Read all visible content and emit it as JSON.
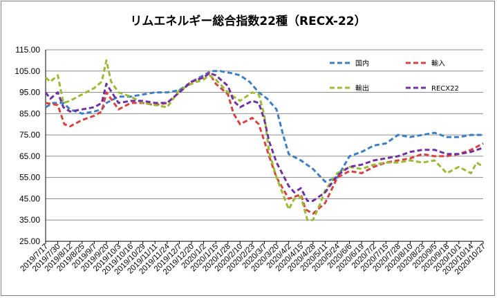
{
  "chart_data": {
    "type": "line",
    "title": "リムエネルギー総合指数22種（RECX-22）",
    "xlabel": "",
    "ylabel": "",
    "ylim": [
      25,
      115
    ],
    "yticks": [
      "115.00",
      "105.00",
      "95.00",
      "85.00",
      "75.00",
      "65.00",
      "55.00",
      "45.00",
      "35.00",
      "25.00"
    ],
    "grid": true,
    "legend_position": "top-right",
    "x_start": "2019-07-17",
    "x_end": "2020-10-27",
    "xticks": [
      "2019/7/17",
      "2019/7/30",
      "2019/8/12",
      "2019/8/25",
      "2019/9/7",
      "2019/9/20",
      "2019/10/3",
      "2019/10/16",
      "2019/10/29",
      "2019/11/11",
      "2019/11/24",
      "2019/12/7",
      "2019/12/20",
      "2020/1/2",
      "2020/1/15",
      "2020/1/28",
      "2020/2/10",
      "2020/2/23",
      "2020/3/7",
      "2020/3/20",
      "2020/4/2",
      "2020/4/15",
      "2020/4/28",
      "2020/5/11",
      "2020/5/24",
      "2020/6/6",
      "2020/6/19",
      "2020/7/2",
      "2020/7/15",
      "2020/7/28",
      "2020/8/10",
      "2020/8/23",
      "2020/9/5",
      "2020/9/18",
      "2020/10/1",
      "2020/10/14",
      "2020/10/27"
    ],
    "series": [
      {
        "name": "国内",
        "color": "#3c7fc4",
        "dash": "dashed",
        "points": [
          [
            "2019-07-17",
            88
          ],
          [
            "2019-07-25",
            90
          ],
          [
            "2019-08-05",
            90
          ],
          [
            "2019-08-12",
            87
          ],
          [
            "2019-08-25",
            85
          ],
          [
            "2019-09-07",
            86
          ],
          [
            "2019-09-15",
            87
          ],
          [
            "2019-09-20",
            90
          ],
          [
            "2019-10-03",
            93
          ],
          [
            "2019-10-16",
            93
          ],
          [
            "2019-10-29",
            94
          ],
          [
            "2019-11-11",
            95
          ],
          [
            "2019-11-24",
            95
          ],
          [
            "2019-12-07",
            96
          ],
          [
            "2019-12-20",
            100
          ],
          [
            "2020-01-02",
            103
          ],
          [
            "2020-01-10",
            105
          ],
          [
            "2020-01-20",
            105
          ],
          [
            "2020-02-01",
            104
          ],
          [
            "2020-02-10",
            103
          ],
          [
            "2020-02-20",
            100
          ],
          [
            "2020-03-01",
            95
          ],
          [
            "2020-03-10",
            92
          ],
          [
            "2020-03-20",
            87
          ],
          [
            "2020-03-27",
            75
          ],
          [
            "2020-04-02",
            66
          ],
          [
            "2020-04-15",
            63
          ],
          [
            "2020-04-28",
            59
          ],
          [
            "2020-05-11",
            53
          ],
          [
            "2020-05-24",
            55
          ],
          [
            "2020-06-06",
            65
          ],
          [
            "2020-06-19",
            67
          ],
          [
            "2020-07-02",
            70
          ],
          [
            "2020-07-15",
            71
          ],
          [
            "2020-07-28",
            75
          ],
          [
            "2020-08-10",
            74
          ],
          [
            "2020-08-23",
            75
          ],
          [
            "2020-09-05",
            76
          ],
          [
            "2020-09-18",
            74
          ],
          [
            "2020-10-01",
            74
          ],
          [
            "2020-10-14",
            75
          ],
          [
            "2020-10-27",
            75
          ]
        ]
      },
      {
        "name": "輸入",
        "color": "#d94040",
        "dash": "dashed",
        "points": [
          [
            "2019-07-17",
            90
          ],
          [
            "2019-07-30",
            89
          ],
          [
            "2019-08-06",
            80
          ],
          [
            "2019-08-12",
            79
          ],
          [
            "2019-08-25",
            82
          ],
          [
            "2019-09-07",
            84
          ],
          [
            "2019-09-15",
            86
          ],
          [
            "2019-09-20",
            95
          ],
          [
            "2019-10-03",
            87
          ],
          [
            "2019-10-16",
            90
          ],
          [
            "2019-10-29",
            90
          ],
          [
            "2019-11-11",
            89
          ],
          [
            "2019-11-24",
            90
          ],
          [
            "2019-12-07",
            95
          ],
          [
            "2019-12-20",
            100
          ],
          [
            "2020-01-02",
            102
          ],
          [
            "2020-01-08",
            104
          ],
          [
            "2020-01-15",
            99
          ],
          [
            "2020-01-28",
            94
          ],
          [
            "2020-02-03",
            85
          ],
          [
            "2020-02-10",
            80
          ],
          [
            "2020-02-23",
            83
          ],
          [
            "2020-03-01",
            80
          ],
          [
            "2020-03-07",
            72
          ],
          [
            "2020-03-12",
            65
          ],
          [
            "2020-03-20",
            55
          ],
          [
            "2020-04-02",
            45
          ],
          [
            "2020-04-15",
            47
          ],
          [
            "2020-04-20",
            40
          ],
          [
            "2020-04-28",
            38
          ],
          [
            "2020-05-11",
            43
          ],
          [
            "2020-05-24",
            55
          ],
          [
            "2020-06-06",
            58
          ],
          [
            "2020-06-19",
            57
          ],
          [
            "2020-07-02",
            60
          ],
          [
            "2020-07-15",
            62
          ],
          [
            "2020-07-28",
            63
          ],
          [
            "2020-08-10",
            64
          ],
          [
            "2020-08-23",
            66
          ],
          [
            "2020-09-05",
            65
          ],
          [
            "2020-09-18",
            65
          ],
          [
            "2020-10-01",
            66
          ],
          [
            "2020-10-14",
            68
          ],
          [
            "2020-10-27",
            71
          ]
        ]
      },
      {
        "name": "輸出",
        "color": "#9bbb35",
        "dash": "dashed",
        "points": [
          [
            "2019-07-17",
            102
          ],
          [
            "2019-07-22",
            100
          ],
          [
            "2019-07-30",
            103
          ],
          [
            "2019-08-05",
            90
          ],
          [
            "2019-08-12",
            91
          ],
          [
            "2019-08-25",
            94
          ],
          [
            "2019-09-07",
            97
          ],
          [
            "2019-09-15",
            100
          ],
          [
            "2019-09-20",
            110
          ],
          [
            "2019-09-25",
            100
          ],
          [
            "2019-10-03",
            95
          ],
          [
            "2019-10-16",
            93
          ],
          [
            "2019-10-29",
            90
          ],
          [
            "2019-11-11",
            89
          ],
          [
            "2019-11-24",
            88
          ],
          [
            "2019-12-07",
            96
          ],
          [
            "2019-12-20",
            99
          ],
          [
            "2020-01-02",
            101
          ],
          [
            "2020-01-08",
            103
          ],
          [
            "2020-01-15",
            101
          ],
          [
            "2020-01-28",
            95
          ],
          [
            "2020-02-03",
            93
          ],
          [
            "2020-02-10",
            91
          ],
          [
            "2020-02-23",
            95
          ],
          [
            "2020-03-01",
            94
          ],
          [
            "2020-03-07",
            84
          ],
          [
            "2020-03-12",
            67
          ],
          [
            "2020-03-20",
            55
          ],
          [
            "2020-04-02",
            40
          ],
          [
            "2020-04-08",
            45
          ],
          [
            "2020-04-15",
            46
          ],
          [
            "2020-04-22",
            35
          ],
          [
            "2020-04-28",
            35
          ],
          [
            "2020-05-05",
            42
          ],
          [
            "2020-05-11",
            49
          ],
          [
            "2020-05-24",
            57
          ],
          [
            "2020-06-06",
            60
          ],
          [
            "2020-06-19",
            59
          ],
          [
            "2020-07-02",
            61
          ],
          [
            "2020-07-15",
            62
          ],
          [
            "2020-07-28",
            62
          ],
          [
            "2020-08-10",
            63
          ],
          [
            "2020-08-23",
            62
          ],
          [
            "2020-09-05",
            63
          ],
          [
            "2020-09-18",
            57
          ],
          [
            "2020-10-01",
            60
          ],
          [
            "2020-10-14",
            57
          ],
          [
            "2020-10-20",
            62
          ],
          [
            "2020-10-27",
            60
          ]
        ]
      },
      {
        "name": "RECX22",
        "color": "#7030a0",
        "dash": "dashed",
        "points": [
          [
            "2019-07-17",
            95
          ],
          [
            "2019-07-22",
            92
          ],
          [
            "2019-07-30",
            95
          ],
          [
            "2019-08-05",
            88
          ],
          [
            "2019-08-12",
            86
          ],
          [
            "2019-08-25",
            87
          ],
          [
            "2019-09-07",
            88
          ],
          [
            "2019-09-15",
            90
          ],
          [
            "2019-09-20",
            99
          ],
          [
            "2019-10-03",
            90
          ],
          [
            "2019-10-16",
            91
          ],
          [
            "2019-10-29",
            91
          ],
          [
            "2019-11-11",
            90
          ],
          [
            "2019-11-24",
            90
          ],
          [
            "2019-12-07",
            95
          ],
          [
            "2019-12-20",
            100
          ],
          [
            "2020-01-02",
            102
          ],
          [
            "2020-01-08",
            104
          ],
          [
            "2020-01-15",
            103
          ],
          [
            "2020-01-28",
            98
          ],
          [
            "2020-02-03",
            91
          ],
          [
            "2020-02-10",
            88
          ],
          [
            "2020-02-23",
            91
          ],
          [
            "2020-03-01",
            90
          ],
          [
            "2020-03-07",
            82
          ],
          [
            "2020-03-12",
            72
          ],
          [
            "2020-03-20",
            62
          ],
          [
            "2020-04-02",
            51
          ],
          [
            "2020-04-08",
            48
          ],
          [
            "2020-04-15",
            50
          ],
          [
            "2020-04-22",
            44
          ],
          [
            "2020-04-28",
            44
          ],
          [
            "2020-05-11",
            48
          ],
          [
            "2020-05-24",
            56
          ],
          [
            "2020-06-06",
            60
          ],
          [
            "2020-06-19",
            61
          ],
          [
            "2020-07-02",
            63
          ],
          [
            "2020-07-15",
            64
          ],
          [
            "2020-07-28",
            65
          ],
          [
            "2020-08-10",
            67
          ],
          [
            "2020-08-23",
            68
          ],
          [
            "2020-09-05",
            68
          ],
          [
            "2020-09-18",
            66
          ],
          [
            "2020-10-01",
            66
          ],
          [
            "2020-10-14",
            67
          ],
          [
            "2020-10-27",
            69
          ]
        ]
      }
    ]
  }
}
